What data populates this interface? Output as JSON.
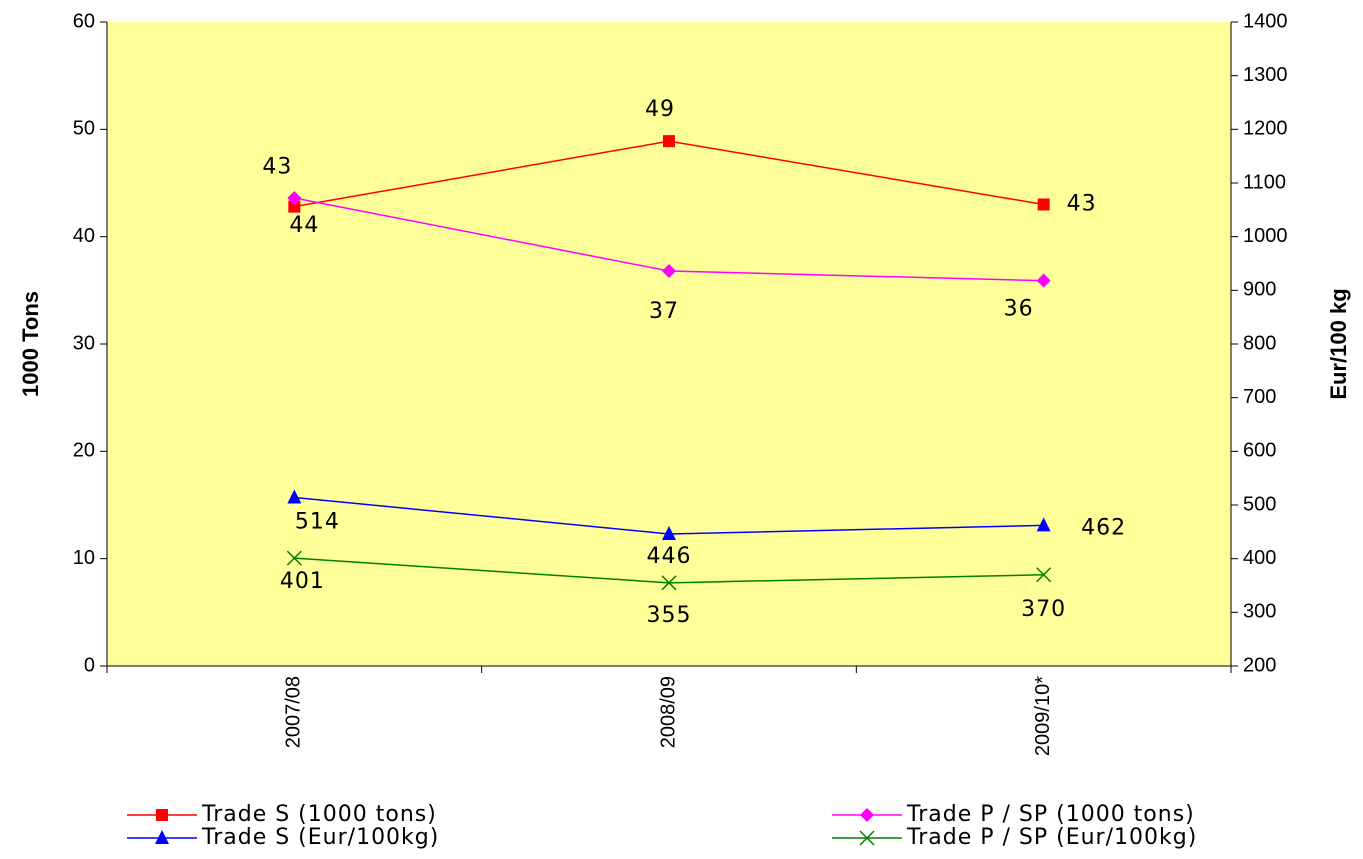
{
  "chart_data": {
    "type": "line",
    "categories": [
      "2007/08",
      "2008/09",
      "2009/10*"
    ],
    "ylabel": "1000 Tons",
    "y2label": "Eur/100 kg",
    "ylim": [
      0,
      60
    ],
    "yticks": [
      0,
      10,
      20,
      30,
      40,
      50,
      60
    ],
    "y2lim": [
      200,
      1400
    ],
    "y2ticks": [
      200,
      300,
      400,
      500,
      600,
      700,
      800,
      900,
      1000,
      1100,
      1200,
      1300,
      1400
    ],
    "background": "#ffff99",
    "series": [
      {
        "name": "Trade S (1000 tons)",
        "color": "#ff0000",
        "marker": "square",
        "values": [
          42.8,
          48.9,
          43.0
        ],
        "value_labels": [
          "43",
          "49",
          "43"
        ]
      },
      {
        "name": "Trade P / SP (1000 tons)",
        "color": "#ff00ff",
        "marker": "diamond",
        "values": [
          43.6,
          36.8,
          35.9
        ],
        "value_labels": [
          "44",
          "37",
          "36"
        ]
      },
      {
        "name": "Trade S (Eur/100kg)",
        "color": "#0000ff",
        "marker": "triangle",
        "axis": "y2",
        "values": [
          514,
          446,
          462
        ]
      },
      {
        "name": "Trade P / SP (Eur/100kg)",
        "color": "#008000",
        "marker": "x",
        "axis": "y2",
        "values": [
          401,
          355,
          370
        ]
      }
    ]
  }
}
